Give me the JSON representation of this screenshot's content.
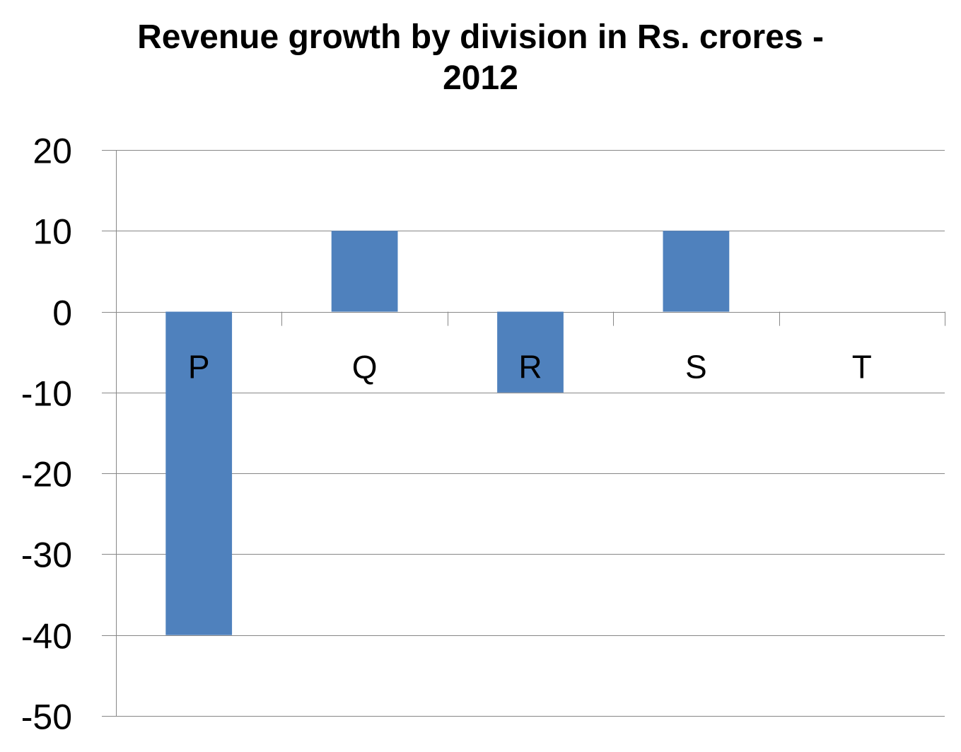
{
  "chart_data": {
    "type": "bar",
    "title_line1": "Revenue growth by division in Rs. crores -",
    "title_line2": "2012",
    "xlabel": "",
    "ylabel": "",
    "categories": [
      "P",
      "Q",
      "R",
      "S",
      "T"
    ],
    "values": [
      -40,
      10,
      -10,
      10,
      0
    ],
    "ylim": [
      -50,
      20
    ],
    "yticks": [
      20,
      10,
      0,
      -10,
      -20,
      -30,
      -40,
      -50
    ],
    "grid": true,
    "legend": "none",
    "bar_color": "#4f81bd",
    "grid_color": "#878787"
  }
}
